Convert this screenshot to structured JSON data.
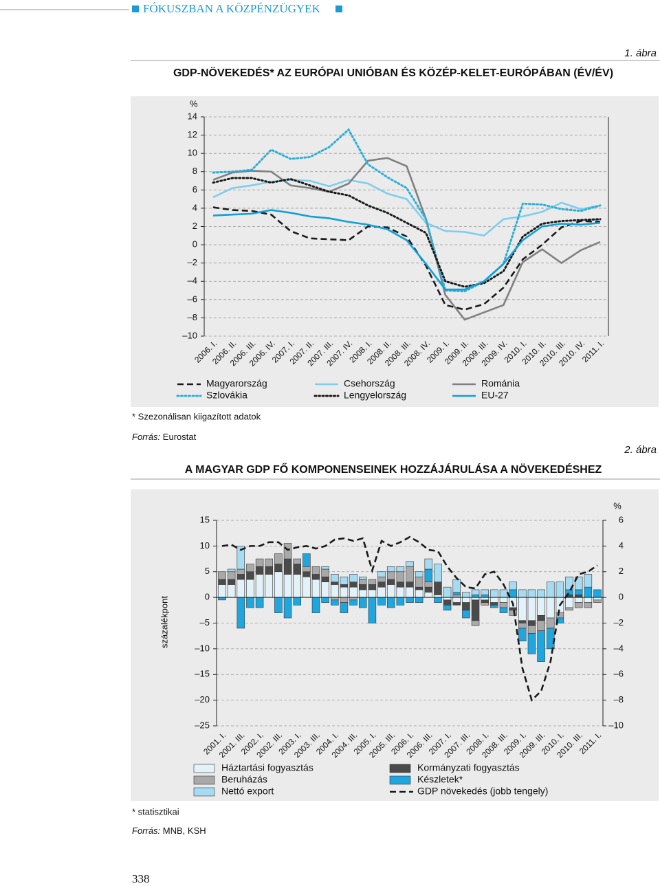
{
  "header": "FÓKUSZBAN A KÖZPÉNZÜGYEK",
  "page_number": "338",
  "chart_data": [
    {
      "type": "line",
      "label": "1. ábra",
      "title": "GDP-NÖVEKEDÉS* AZ EURÓPAI UNIÓBAN ÉS KÖZÉP-KELET-EURÓPÁBAN (ÉV/ÉV)",
      "y_unit": "%",
      "footnote": "* Szezonálisan kiigazított adatok",
      "source_label": "Forrás:",
      "source": "Eurostat",
      "categories": [
        "2006. I.",
        "2006. II.",
        "2006. III.",
        "2006. IV.",
        "2007. I.",
        "2007. II.",
        "2007. III.",
        "2007. IV.",
        "2008. I.",
        "2008. II.",
        "2008. III.",
        "2008. IV.",
        "2009. I.",
        "2009. II.",
        "2009. III.",
        "2009. IV.",
        "2010. I.",
        "2010. II.",
        "2010. III.",
        "2010. IV.",
        "2011. I."
      ],
      "ylim": [
        -10,
        14
      ],
      "yticks": [
        14,
        12,
        10,
        8,
        6,
        4,
        2,
        0,
        {
          "value": -2,
          "label": "–2"
        },
        {
          "value": -4,
          "label": "–4"
        },
        {
          "value": -6,
          "label": "–6"
        },
        {
          "value": -8,
          "label": "–8"
        },
        {
          "value": -10,
          "label": "–10"
        }
      ],
      "grid": true,
      "series": [
        {
          "name": "Magyarország",
          "color": "#1a1a1a",
          "style": "dashed",
          "values": [
            4.1,
            3.8,
            3.7,
            3.3,
            1.5,
            0.7,
            0.6,
            0.5,
            2.0,
            1.9,
            0.9,
            -2.3,
            -6.6,
            -7.1,
            -6.5,
            -4.7,
            -1.6,
            0.0,
            1.9,
            2.6,
            2.5
          ]
        },
        {
          "name": "Csehország",
          "color": "#7fcdee",
          "style": "solid",
          "values": [
            5.2,
            6.2,
            6.5,
            6.9,
            7.1,
            7.0,
            6.4,
            7.1,
            6.7,
            5.6,
            5.0,
            2.4,
            1.5,
            1.4,
            1.0,
            2.8,
            3.1,
            3.6,
            4.6,
            3.9,
            4.3
          ]
        },
        {
          "name": "Románia",
          "color": "#808080",
          "style": "solid",
          "values": [
            7.1,
            7.9,
            8.1,
            8.0,
            6.5,
            6.2,
            5.8,
            6.7,
            9.2,
            9.5,
            8.6,
            2.8,
            -5.5,
            -8.2,
            -7.4,
            -6.6,
            -1.9,
            -0.5,
            -2.0,
            -0.6,
            0.3
          ]
        },
        {
          "name": "Szlovákia",
          "color": "#2aaed8",
          "style": "dotted",
          "values": [
            7.9,
            8.0,
            8.2,
            10.4,
            9.4,
            9.6,
            10.7,
            12.6,
            8.8,
            7.4,
            6.2,
            2.8,
            -5.0,
            -5.1,
            -4.0,
            -2.1,
            4.5,
            4.4,
            3.9,
            3.7,
            4.3
          ]
        },
        {
          "name": "Lengyelország",
          "color": "#1a1a1a",
          "style": "dotted",
          "values": [
            6.8,
            7.3,
            7.3,
            6.8,
            7.2,
            6.5,
            5.8,
            5.4,
            4.3,
            3.5,
            2.4,
            1.3,
            -4.0,
            -4.6,
            -4.2,
            -2.9,
            0.9,
            2.3,
            2.6,
            2.7,
            2.8
          ]
        },
        {
          "name": "EU-27",
          "color": "#119fd9",
          "style": "solid",
          "values": [
            3.2,
            3.3,
            3.4,
            3.8,
            3.5,
            3.1,
            2.9,
            2.5,
            2.2,
            1.7,
            0.5,
            -2.1,
            -4.9,
            -4.9,
            -4.0,
            -2.1,
            0.5,
            2.0,
            2.3,
            2.2,
            2.4
          ]
        }
      ]
    },
    {
      "type": "bar",
      "label": "2. ábra",
      "title": "A MAGYAR GDP FŐ KOMPONENSEINEK HOZZÁJÁRULÁSA A NÖVEKEDÉSHEZ",
      "y_label": "százalékpont",
      "y2_unit": "%",
      "footnote": "* statisztikai",
      "source_label": "Forrás:",
      "source": "MNB, KSH",
      "categories": [
        "2001. I.",
        null,
        "2001. III.",
        null,
        "2002. I.",
        null,
        "2002. III.",
        null,
        "2003. I.",
        null,
        "2003. III.",
        null,
        "2004. I.",
        null,
        "2004. III.",
        null,
        "2005. I.",
        null,
        "2005. III.",
        null,
        "2006. I.",
        null,
        "2006. III.",
        null,
        "2007. I.",
        null,
        "2007. III.",
        null,
        "2008. I.",
        null,
        "2008. III.",
        null,
        "2009. I.",
        null,
        "2009. III.",
        null,
        "2010. I.",
        null,
        "2010. III.",
        null,
        "2011. I."
      ],
      "ylim": [
        -25,
        15
      ],
      "yticks": [
        15,
        10,
        5,
        0,
        {
          "value": -5,
          "label": "–5"
        },
        {
          "value": -10,
          "label": "–10"
        },
        {
          "value": -15,
          "label": "–15"
        },
        {
          "value": -20,
          "label": "–20"
        },
        {
          "value": -25,
          "label": "–25"
        }
      ],
      "y2lim": [
        -10,
        6
      ],
      "y2ticks": [
        6,
        4,
        2,
        0,
        {
          "value": -2,
          "label": "–2"
        },
        {
          "value": -4,
          "label": "–4"
        },
        {
          "value": -6,
          "label": "–6"
        },
        {
          "value": -8,
          "label": "–8"
        },
        {
          "value": -10,
          "label": "–10"
        }
      ],
      "grid": true,
      "series": [
        {
          "name": "Háztartási fogyasztás",
          "color": "#e3f1f8",
          "values": [
            2.5,
            2.5,
            3.5,
            3.5,
            4.5,
            4.5,
            5,
            4.5,
            4.5,
            4,
            3.5,
            3,
            2.5,
            2,
            2,
            1.5,
            1.5,
            2,
            2.5,
            2,
            2,
            1.5,
            1,
            0.5,
            -0.5,
            -1,
            -1,
            -0.5,
            -0.5,
            -1,
            -1,
            -2,
            -4.5,
            -4.5,
            -3.5,
            -4,
            -3,
            -2,
            -1,
            -1,
            -0.5
          ]
        },
        {
          "name": "Kormányzati fogyasztás",
          "color": "#4a4a4a",
          "values": [
            1,
            1,
            1,
            1.5,
            1.5,
            1.5,
            1.5,
            3,
            2,
            1,
            1,
            1,
            0.5,
            0.5,
            1,
            1,
            1,
            1,
            1,
            1,
            1,
            0.5,
            1,
            2.5,
            -1,
            -0.5,
            -1.5,
            -4,
            -0.5,
            -0.5,
            0,
            -0.5,
            -0.5,
            -1,
            -1,
            0,
            0,
            0.5,
            0.5,
            0,
            0
          ]
        },
        {
          "name": "Beruházás",
          "color": "#a9a9a9",
          "values": [
            1.5,
            1.5,
            1,
            1.5,
            1.5,
            1.5,
            2,
            3,
            1,
            1,
            1.5,
            1.5,
            -0.5,
            -1,
            -0.5,
            1,
            1,
            1,
            1.5,
            2,
            3,
            2,
            1,
            0,
            0,
            0.5,
            0,
            -1,
            -0.5,
            0,
            -1,
            -1,
            -1,
            -1.5,
            -2,
            -2,
            -1,
            -0.5,
            -1,
            -1,
            -0.5
          ]
        },
        {
          "name": "Készletek*",
          "color": "#1fa6df",
          "values": [
            -0.5,
            0,
            -6,
            -2,
            -2,
            0,
            -3,
            -4,
            -1.5,
            2.5,
            -3,
            -1,
            -1,
            -2,
            -1,
            -2,
            -5,
            -1.5,
            -2,
            -1.5,
            -1,
            -1,
            2.5,
            -1,
            -1,
            0.5,
            -1.5,
            0.5,
            0.5,
            -0.5,
            -1,
            1.5,
            -2.5,
            -4,
            -6,
            -4,
            -1,
            1,
            1,
            2,
            1.5
          ]
        },
        {
          "name": "Nettó export",
          "color": "#a6dbf2",
          "values": [
            0,
            0.5,
            4.5,
            0,
            0,
            0,
            0,
            0,
            0,
            0,
            0,
            0.5,
            1.5,
            1.5,
            1.5,
            0.5,
            0,
            1,
            1,
            1,
            1,
            1,
            2,
            3.5,
            2,
            2.5,
            1,
            1,
            1,
            1.5,
            1.5,
            1.5,
            1.5,
            1.5,
            1.5,
            3,
            3,
            2.5,
            2.5,
            2.5,
            0
          ]
        },
        {
          "name": "GDP növekedés (jobb tengely)",
          "color": "#1a1a1a",
          "type": "line",
          "style": "dashed",
          "axis": "y2",
          "values": [
            4.0,
            4.1,
            3.7,
            4.0,
            4.0,
            4.3,
            4.3,
            3.7,
            3.9,
            4.0,
            3.8,
            4.0,
            4.5,
            4.6,
            4.4,
            4.6,
            2.1,
            4.4,
            4.0,
            4.3,
            4.7,
            4.3,
            3.7,
            3.6,
            2.4,
            1.5,
            0.8,
            0.7,
            1.8,
            2.0,
            1.0,
            -0.5,
            -5.5,
            -8.0,
            -7.3,
            -5.0,
            -0.6,
            0.4,
            1.8,
            2.0,
            2.5
          ]
        }
      ]
    }
  ]
}
